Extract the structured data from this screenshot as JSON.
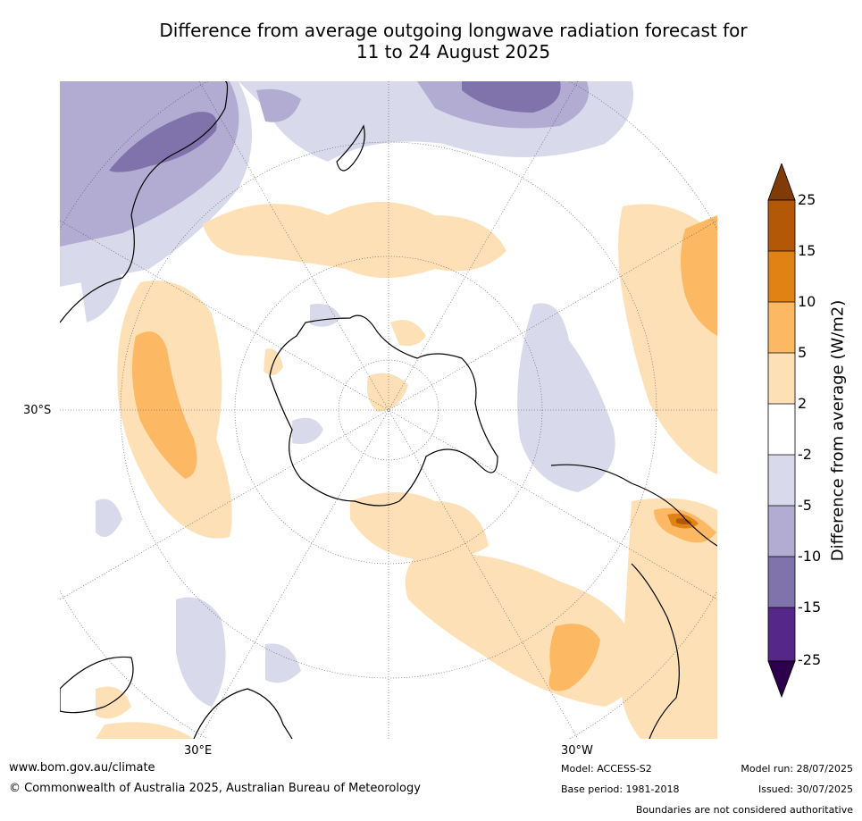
{
  "title": {
    "line1": "Difference from average outgoing longwave radiation forecast for",
    "line2": "11 to 24 August 2025"
  },
  "map": {
    "projection": "south-polar-stereographic",
    "lat_label_left": "30°S",
    "lon_label_left": "30°E",
    "lon_label_right": "30°W"
  },
  "colorbar": {
    "title": "Difference from average (W/m2)",
    "ticks": [
      "25",
      "15",
      "10",
      "5",
      "2",
      "-2",
      "-5",
      "-10",
      "-15",
      "-25"
    ],
    "colors": {
      "above_25": "#7f3b08",
      "15_25": "#b35806",
      "10_15": "#e08214",
      "5_10": "#fdb863",
      "2_5": "#fee0b6",
      "neutral": "#ffffff",
      "m5_m2": "#d8daeb",
      "m10_m5": "#b2abd2",
      "m15_m10": "#8073ac",
      "m25_m15": "#542788",
      "below_m25": "#2d004b"
    }
  },
  "footer": {
    "website": "www.bom.gov.au/climate",
    "copyright": "© Commonwealth of Australia 2025, Australian Bureau of Meteorology",
    "model": "Model: ACCESS-S2",
    "base_period": "Base period: 1981-2018",
    "model_run": "Model run: 28/07/2025",
    "issued": "Issued: 30/07/2025",
    "disclaimer": "Boundaries are not considered authoritative"
  }
}
